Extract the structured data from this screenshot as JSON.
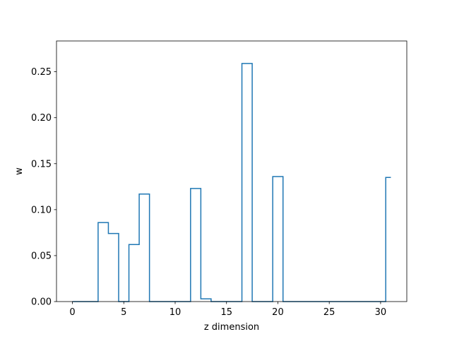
{
  "chart_data": {
    "type": "line",
    "drawstyle": "steps-mid",
    "title": "",
    "xlabel": "z dimension",
    "ylabel": "w",
    "xlim": [
      -1.55,
      32.55
    ],
    "ylim": [
      0,
      0.2835
    ],
    "x_ticks": [
      0,
      5,
      10,
      15,
      20,
      25,
      30
    ],
    "x_tick_labels": [
      "0",
      "5",
      "10",
      "15",
      "20",
      "25",
      "30"
    ],
    "y_ticks": [
      0.0,
      0.05,
      0.1,
      0.15,
      0.2,
      0.25
    ],
    "y_tick_labels": [
      "0.00",
      "0.05",
      "0.10",
      "0.15",
      "0.20",
      "0.25"
    ],
    "grid": false,
    "series": [
      {
        "color": "#1f77b4",
        "x": [
          0,
          1,
          2,
          3,
          4,
          5,
          6,
          7,
          8,
          9,
          10,
          11,
          12,
          13,
          14,
          15,
          16,
          17,
          18,
          19,
          20,
          21,
          22,
          23,
          24,
          25,
          26,
          27,
          28,
          29,
          30,
          31
        ],
        "y": [
          0,
          0,
          0,
          0.086,
          0.074,
          0,
          0.062,
          0.117,
          0,
          0,
          0,
          0,
          0.123,
          0.003,
          0,
          0,
          0,
          0.259,
          0,
          0,
          0.136,
          0,
          0,
          0,
          0,
          0,
          0,
          0,
          0,
          0,
          0,
          0.135
        ]
      }
    ]
  }
}
